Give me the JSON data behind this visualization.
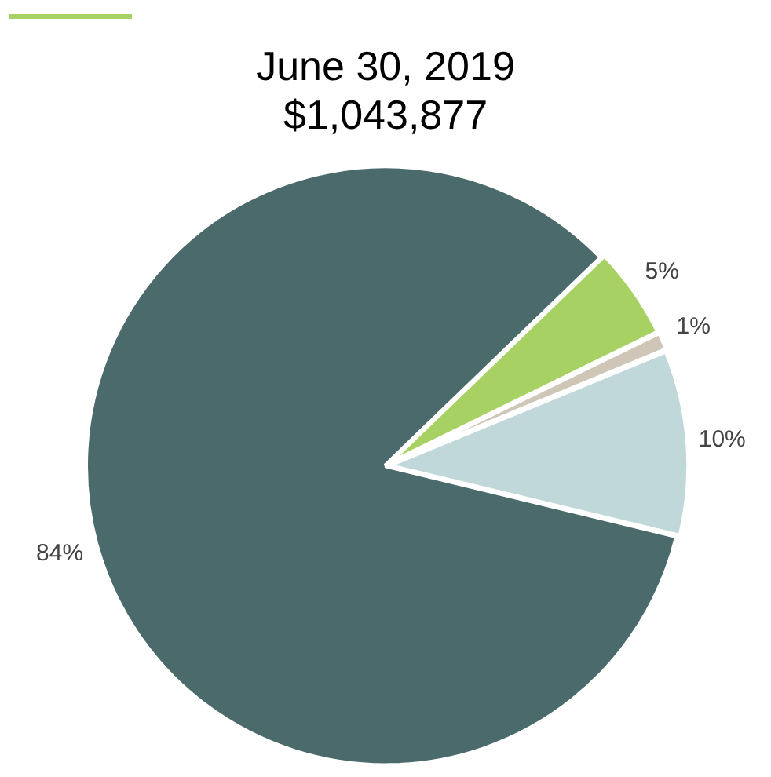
{
  "chart_data": {
    "type": "pie",
    "title": "June 30, 2019\n$1,043,877",
    "categories": [
      null,
      null,
      null,
      null
    ],
    "values": [
      5,
      1,
      10,
      84
    ],
    "value_labels": [
      "5%",
      "1%",
      "10%",
      "84%"
    ],
    "colors": [
      "#a8d163",
      "#d0c6b8",
      "#c0d8da",
      "#4a6a6b"
    ]
  }
}
